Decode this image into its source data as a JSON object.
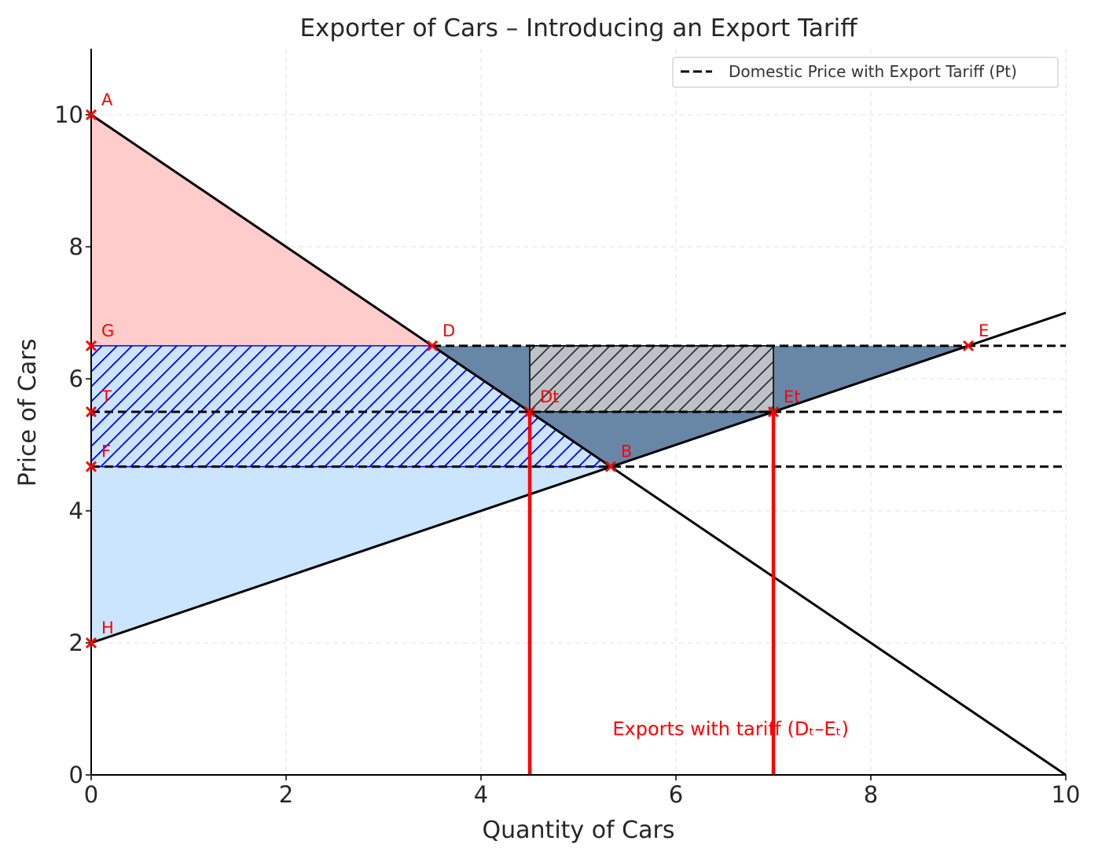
{
  "colors": {
    "consumer_surplus": "#ffcccc",
    "producer_surplus": "#cce5ff",
    "hatch_blue": "#0000ff",
    "tariff_revenue": "#bcc2c8",
    "deadweight_loss": "#6886a6",
    "curve": "#000000",
    "marker": "#ff0000",
    "grid": "#e6e6e6"
  },
  "chart_data": {
    "type": "line",
    "title": "Exporter of Cars – Introducing an Export Tariff",
    "xlabel": "Quantity of Cars",
    "ylabel": "Price of Cars",
    "xlim": [
      0,
      10
    ],
    "ylim": [
      0,
      11
    ],
    "x_ticks": [
      0,
      2,
      4,
      6,
      8,
      10
    ],
    "y_ticks": [
      0,
      2,
      4,
      6,
      8,
      10
    ],
    "grid": true,
    "legend": {
      "position": "top-right",
      "entries": [
        {
          "label": "Domestic Price with Export Tariff (Pt)",
          "style": "dashed",
          "color": "#000000"
        }
      ]
    },
    "series": [
      {
        "kind": "demand",
        "style": "solid",
        "points": [
          [
            0,
            10
          ],
          [
            10,
            0
          ]
        ]
      },
      {
        "kind": "supply",
        "style": "solid",
        "points": [
          [
            0,
            2
          ],
          [
            10,
            7
          ]
        ]
      }
    ],
    "price_lines": [
      {
        "y": 6.5,
        "x_from": 3.5,
        "x_to": 10
      },
      {
        "y": 5.5,
        "x_from": 0,
        "x_to": 10
      },
      {
        "y": 4.67,
        "x_from": 0,
        "x_to": 10
      }
    ],
    "regions": [
      {
        "name": "consumer-surplus",
        "polygon": [
          [
            0,
            10
          ],
          [
            0,
            6.5
          ],
          [
            3.5,
            6.5
          ]
        ]
      },
      {
        "name": "producer-surplus",
        "polygon": [
          [
            0,
            2
          ],
          [
            0,
            6.5
          ],
          [
            3.5,
            6.5
          ],
          [
            5.33,
            4.67
          ]
        ]
      },
      {
        "name": "hatched-area",
        "polygon": [
          [
            0,
            6.5
          ],
          [
            3.5,
            6.5
          ],
          [
            5.33,
            4.67
          ],
          [
            0,
            4.67
          ]
        ]
      },
      {
        "name": "tariff-revenue",
        "polygon": [
          [
            4.5,
            6.5
          ],
          [
            7,
            6.5
          ],
          [
            7,
            5.5
          ],
          [
            4.5,
            5.5
          ]
        ]
      },
      {
        "name": "deadweight-loss",
        "polygon": [
          [
            3.5,
            6.5
          ],
          [
            9,
            6.5
          ],
          [
            5.33,
            4.67
          ]
        ]
      }
    ],
    "export_markers": [
      {
        "x": 4.5,
        "y_from": 0,
        "y_to": 5.5
      },
      {
        "x": 7,
        "y_from": 0,
        "y_to": 5.5
      }
    ],
    "points": [
      {
        "label": "A",
        "x": 0,
        "y": 10
      },
      {
        "label": "G",
        "x": 0,
        "y": 6.5
      },
      {
        "label": "T",
        "x": 0,
        "y": 5.5
      },
      {
        "label": "F",
        "x": 0,
        "y": 4.67
      },
      {
        "label": "H",
        "x": 0,
        "y": 2
      },
      {
        "label": "D",
        "x": 3.5,
        "y": 6.5
      },
      {
        "label": "Dt",
        "x": 4.5,
        "y": 5.5
      },
      {
        "label": "Et",
        "x": 7,
        "y": 5.5
      },
      {
        "label": "B",
        "x": 5.33,
        "y": 4.67
      },
      {
        "label": "E",
        "x": 9,
        "y": 6.5
      }
    ],
    "annotations": [
      {
        "text": "Exports with tariff (Dₜ–Eₜ)",
        "x": 5.35,
        "y": 0.6
      }
    ]
  }
}
